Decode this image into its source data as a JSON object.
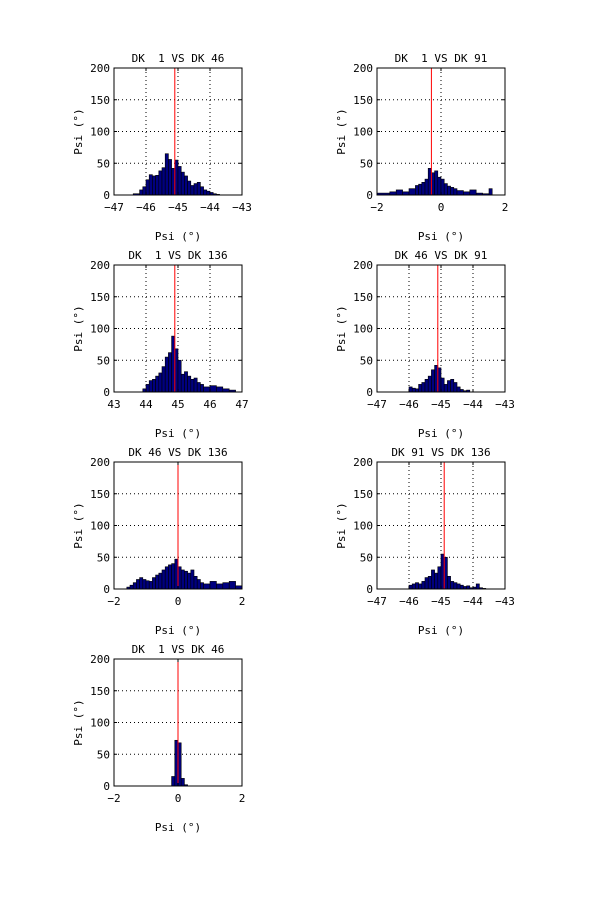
{
  "figure": {
    "background": "#ffffff",
    "bar_color": "#00007f",
    "bar_edge_color": "#000000",
    "marker_color": "#ff0000",
    "grid_color": "#000000"
  },
  "chart_data": [
    {
      "type": "bar",
      "title": "DK  1 VS DK 46",
      "xlabel": "Psi (°)",
      "ylabel": "Psi (°)",
      "xlim": [
        -47,
        -43
      ],
      "ylim": [
        0,
        200
      ],
      "xticks": [
        -47,
        -46,
        -45,
        -44,
        -43
      ],
      "yticks": [
        0,
        50,
        100,
        150,
        200
      ],
      "grid": true,
      "marker_x": -45.1,
      "bins": [
        {
          "x0": -46.4,
          "x1": -46.2,
          "count": 2
        },
        {
          "x0": -46.2,
          "x1": -46.1,
          "count": 8
        },
        {
          "x0": -46.1,
          "x1": -46.0,
          "count": 13
        },
        {
          "x0": -46.0,
          "x1": -45.9,
          "count": 24
        },
        {
          "x0": -45.9,
          "x1": -45.8,
          "count": 32
        },
        {
          "x0": -45.8,
          "x1": -45.7,
          "count": 30
        },
        {
          "x0": -45.7,
          "x1": -45.6,
          "count": 31
        },
        {
          "x0": -45.6,
          "x1": -45.5,
          "count": 38
        },
        {
          "x0": -45.5,
          "x1": -45.4,
          "count": 43
        },
        {
          "x0": -45.4,
          "x1": -45.3,
          "count": 65
        },
        {
          "x0": -45.3,
          "x1": -45.2,
          "count": 56
        },
        {
          "x0": -45.2,
          "x1": -45.1,
          "count": 42
        },
        {
          "x0": -45.1,
          "x1": -45.0,
          "count": 55
        },
        {
          "x0": -45.0,
          "x1": -44.9,
          "count": 45
        },
        {
          "x0": -44.9,
          "x1": -44.8,
          "count": 36
        },
        {
          "x0": -44.8,
          "x1": -44.7,
          "count": 30
        },
        {
          "x0": -44.7,
          "x1": -44.6,
          "count": 22
        },
        {
          "x0": -44.6,
          "x1": -44.5,
          "count": 15
        },
        {
          "x0": -44.5,
          "x1": -44.4,
          "count": 18
        },
        {
          "x0": -44.4,
          "x1": -44.3,
          "count": 20
        },
        {
          "x0": -44.3,
          "x1": -44.2,
          "count": 13
        },
        {
          "x0": -44.2,
          "x1": -44.1,
          "count": 8
        },
        {
          "x0": -44.1,
          "x1": -44.0,
          "count": 6
        },
        {
          "x0": -44.0,
          "x1": -43.9,
          "count": 4
        },
        {
          "x0": -43.9,
          "x1": -43.8,
          "count": 2
        },
        {
          "x0": -43.8,
          "x1": -43.7,
          "count": 1
        }
      ]
    },
    {
      "type": "bar",
      "title": "DK  1 VS DK 91",
      "xlabel": "Psi (°)",
      "ylabel": "Psi (°)",
      "xlim": [
        -2,
        2
      ],
      "ylim": [
        0,
        200
      ],
      "xticks": [
        -2,
        0,
        2
      ],
      "yticks": [
        0,
        50,
        100,
        150,
        200
      ],
      "grid": true,
      "marker_x": -0.3,
      "bins": [
        {
          "x0": -2.0,
          "x1": -1.6,
          "count": 3
        },
        {
          "x0": -1.6,
          "x1": -1.4,
          "count": 5
        },
        {
          "x0": -1.4,
          "x1": -1.2,
          "count": 8
        },
        {
          "x0": -1.2,
          "x1": -1.0,
          "count": 5
        },
        {
          "x0": -1.0,
          "x1": -0.8,
          "count": 10
        },
        {
          "x0": -0.8,
          "x1": -0.7,
          "count": 15
        },
        {
          "x0": -0.7,
          "x1": -0.6,
          "count": 17
        },
        {
          "x0": -0.6,
          "x1": -0.5,
          "count": 20
        },
        {
          "x0": -0.5,
          "x1": -0.4,
          "count": 25
        },
        {
          "x0": -0.4,
          "x1": -0.3,
          "count": 42
        },
        {
          "x0": -0.3,
          "x1": -0.2,
          "count": 35
        },
        {
          "x0": -0.2,
          "x1": -0.1,
          "count": 38
        },
        {
          "x0": -0.1,
          "x1": 0.0,
          "count": 28
        },
        {
          "x0": 0.0,
          "x1": 0.1,
          "count": 25
        },
        {
          "x0": 0.1,
          "x1": 0.2,
          "count": 18
        },
        {
          "x0": 0.2,
          "x1": 0.3,
          "count": 14
        },
        {
          "x0": 0.3,
          "x1": 0.4,
          "count": 12
        },
        {
          "x0": 0.4,
          "x1": 0.5,
          "count": 10
        },
        {
          "x0": 0.5,
          "x1": 0.7,
          "count": 7
        },
        {
          "x0": 0.7,
          "x1": 0.9,
          "count": 5
        },
        {
          "x0": 0.9,
          "x1": 1.1,
          "count": 8
        },
        {
          "x0": 1.1,
          "x1": 1.3,
          "count": 3
        },
        {
          "x0": 1.3,
          "x1": 1.5,
          "count": 2
        },
        {
          "x0": 1.5,
          "x1": 1.6,
          "count": 10
        }
      ]
    },
    {
      "type": "bar",
      "title": "DK  1 VS DK 136",
      "xlabel": "Psi (°)",
      "ylabel": "Psi (°)",
      "xlim": [
        43,
        47
      ],
      "ylim": [
        0,
        200
      ],
      "xticks": [
        43,
        44,
        45,
        46,
        47
      ],
      "yticks": [
        0,
        50,
        100,
        150,
        200
      ],
      "grid": true,
      "marker_x": 44.9,
      "bins": [
        {
          "x0": 43.9,
          "x1": 44.0,
          "count": 5
        },
        {
          "x0": 44.0,
          "x1": 44.1,
          "count": 12
        },
        {
          "x0": 44.1,
          "x1": 44.2,
          "count": 18
        },
        {
          "x0": 44.2,
          "x1": 44.3,
          "count": 20
        },
        {
          "x0": 44.3,
          "x1": 44.4,
          "count": 25
        },
        {
          "x0": 44.4,
          "x1": 44.5,
          "count": 30
        },
        {
          "x0": 44.5,
          "x1": 44.6,
          "count": 40
        },
        {
          "x0": 44.6,
          "x1": 44.7,
          "count": 55
        },
        {
          "x0": 44.7,
          "x1": 44.8,
          "count": 62
        },
        {
          "x0": 44.8,
          "x1": 44.9,
          "count": 88
        },
        {
          "x0": 44.9,
          "x1": 45.0,
          "count": 68
        },
        {
          "x0": 45.0,
          "x1": 45.1,
          "count": 50
        },
        {
          "x0": 45.1,
          "x1": 45.2,
          "count": 28
        },
        {
          "x0": 45.2,
          "x1": 45.3,
          "count": 32
        },
        {
          "x0": 45.3,
          "x1": 45.4,
          "count": 25
        },
        {
          "x0": 45.4,
          "x1": 45.5,
          "count": 20
        },
        {
          "x0": 45.5,
          "x1": 45.6,
          "count": 22
        },
        {
          "x0": 45.6,
          "x1": 45.7,
          "count": 15
        },
        {
          "x0": 45.7,
          "x1": 45.8,
          "count": 12
        },
        {
          "x0": 45.8,
          "x1": 46.0,
          "count": 8
        },
        {
          "x0": 46.0,
          "x1": 46.2,
          "count": 10
        },
        {
          "x0": 46.2,
          "x1": 46.4,
          "count": 8
        },
        {
          "x0": 46.4,
          "x1": 46.6,
          "count": 5
        },
        {
          "x0": 46.6,
          "x1": 46.8,
          "count": 3
        }
      ]
    },
    {
      "type": "bar",
      "title": "DK 46 VS DK 91",
      "xlabel": "Psi (°)",
      "ylabel": "Psi (°)",
      "xlim": [
        -47,
        -43
      ],
      "ylim": [
        0,
        200
      ],
      "xticks": [
        -47,
        -46,
        -45,
        -44,
        -43
      ],
      "yticks": [
        0,
        50,
        100,
        150,
        200
      ],
      "grid": true,
      "marker_x": -45.1,
      "bins": [
        {
          "x0": -46.0,
          "x1": -45.9,
          "count": 8
        },
        {
          "x0": -45.9,
          "x1": -45.8,
          "count": 6
        },
        {
          "x0": -45.8,
          "x1": -45.7,
          "count": 5
        },
        {
          "x0": -45.7,
          "x1": -45.6,
          "count": 12
        },
        {
          "x0": -45.6,
          "x1": -45.5,
          "count": 15
        },
        {
          "x0": -45.5,
          "x1": -45.4,
          "count": 20
        },
        {
          "x0": -45.4,
          "x1": -45.3,
          "count": 25
        },
        {
          "x0": -45.3,
          "x1": -45.2,
          "count": 35
        },
        {
          "x0": -45.2,
          "x1": -45.1,
          "count": 42
        },
        {
          "x0": -45.1,
          "x1": -45.0,
          "count": 38
        },
        {
          "x0": -45.0,
          "x1": -44.9,
          "count": 22
        },
        {
          "x0": -44.9,
          "x1": -44.8,
          "count": 12
        },
        {
          "x0": -44.8,
          "x1": -44.7,
          "count": 18
        },
        {
          "x0": -44.7,
          "x1": -44.6,
          "count": 20
        },
        {
          "x0": -44.6,
          "x1": -44.5,
          "count": 15
        },
        {
          "x0": -44.5,
          "x1": -44.4,
          "count": 8
        },
        {
          "x0": -44.4,
          "x1": -44.3,
          "count": 4
        },
        {
          "x0": -44.3,
          "x1": -44.2,
          "count": 2
        },
        {
          "x0": -44.2,
          "x1": -44.1,
          "count": 3
        }
      ]
    },
    {
      "type": "bar",
      "title": "DK 46 VS DK 136",
      "xlabel": "Psi (°)",
      "ylabel": "Psi (°)",
      "xlim": [
        -2,
        2
      ],
      "ylim": [
        0,
        200
      ],
      "xticks": [
        -2,
        0,
        2
      ],
      "yticks": [
        0,
        50,
        100,
        150,
        200
      ],
      "grid": true,
      "marker_x": 0.0,
      "bins": [
        {
          "x0": -1.6,
          "x1": -1.5,
          "count": 3
        },
        {
          "x0": -1.5,
          "x1": -1.4,
          "count": 6
        },
        {
          "x0": -1.4,
          "x1": -1.3,
          "count": 10
        },
        {
          "x0": -1.3,
          "x1": -1.2,
          "count": 15
        },
        {
          "x0": -1.2,
          "x1": -1.1,
          "count": 18
        },
        {
          "x0": -1.1,
          "x1": -1.0,
          "count": 15
        },
        {
          "x0": -1.0,
          "x1": -0.9,
          "count": 13
        },
        {
          "x0": -0.9,
          "x1": -0.8,
          "count": 12
        },
        {
          "x0": -0.8,
          "x1": -0.7,
          "count": 18
        },
        {
          "x0": -0.7,
          "x1": -0.6,
          "count": 22
        },
        {
          "x0": -0.6,
          "x1": -0.5,
          "count": 25
        },
        {
          "x0": -0.5,
          "x1": -0.4,
          "count": 30
        },
        {
          "x0": -0.4,
          "x1": -0.3,
          "count": 35
        },
        {
          "x0": -0.3,
          "x1": -0.2,
          "count": 38
        },
        {
          "x0": -0.2,
          "x1": -0.1,
          "count": 40
        },
        {
          "x0": -0.1,
          "x1": 0.0,
          "count": 47
        },
        {
          "x0": 0.0,
          "x1": 0.1,
          "count": 35
        },
        {
          "x0": 0.1,
          "x1": 0.2,
          "count": 30
        },
        {
          "x0": 0.2,
          "x1": 0.3,
          "count": 28
        },
        {
          "x0": 0.3,
          "x1": 0.4,
          "count": 25
        },
        {
          "x0": 0.4,
          "x1": 0.5,
          "count": 30
        },
        {
          "x0": 0.5,
          "x1": 0.6,
          "count": 20
        },
        {
          "x0": 0.6,
          "x1": 0.7,
          "count": 15
        },
        {
          "x0": 0.7,
          "x1": 0.8,
          "count": 10
        },
        {
          "x0": 0.8,
          "x1": 1.0,
          "count": 8
        },
        {
          "x0": 1.0,
          "x1": 1.2,
          "count": 12
        },
        {
          "x0": 1.2,
          "x1": 1.4,
          "count": 8
        },
        {
          "x0": 1.4,
          "x1": 1.6,
          "count": 10
        },
        {
          "x0": 1.6,
          "x1": 1.8,
          "count": 12
        },
        {
          "x0": 1.8,
          "x1": 2.0,
          "count": 5
        }
      ]
    },
    {
      "type": "bar",
      "title": "DK 91 VS DK 136",
      "xlabel": "Psi (°)",
      "ylabel": "Psi (°)",
      "xlim": [
        -47,
        -43
      ],
      "ylim": [
        0,
        200
      ],
      "xticks": [
        -47,
        -46,
        -45,
        -44,
        -43
      ],
      "yticks": [
        0,
        50,
        100,
        150,
        200
      ],
      "grid": true,
      "marker_x": -44.9,
      "bins": [
        {
          "x0": -46.0,
          "x1": -45.9,
          "count": 6
        },
        {
          "x0": -45.9,
          "x1": -45.8,
          "count": 8
        },
        {
          "x0": -45.8,
          "x1": -45.7,
          "count": 10
        },
        {
          "x0": -45.7,
          "x1": -45.6,
          "count": 8
        },
        {
          "x0": -45.6,
          "x1": -45.5,
          "count": 12
        },
        {
          "x0": -45.5,
          "x1": -45.4,
          "count": 18
        },
        {
          "x0": -45.4,
          "x1": -45.3,
          "count": 20
        },
        {
          "x0": -45.3,
          "x1": -45.2,
          "count": 30
        },
        {
          "x0": -45.2,
          "x1": -45.1,
          "count": 25
        },
        {
          "x0": -45.1,
          "x1": -45.0,
          "count": 35
        },
        {
          "x0": -45.0,
          "x1": -44.9,
          "count": 55
        },
        {
          "x0": -44.9,
          "x1": -44.8,
          "count": 50
        },
        {
          "x0": -44.8,
          "x1": -44.7,
          "count": 20
        },
        {
          "x0": -44.7,
          "x1": -44.6,
          "count": 12
        },
        {
          "x0": -44.6,
          "x1": -44.5,
          "count": 10
        },
        {
          "x0": -44.5,
          "x1": -44.4,
          "count": 8
        },
        {
          "x0": -44.4,
          "x1": -44.3,
          "count": 6
        },
        {
          "x0": -44.3,
          "x1": -44.2,
          "count": 4
        },
        {
          "x0": -44.2,
          "x1": -44.1,
          "count": 5
        },
        {
          "x0": -44.1,
          "x1": -44.0,
          "count": 2
        },
        {
          "x0": -44.0,
          "x1": -43.9,
          "count": 3
        },
        {
          "x0": -43.9,
          "x1": -43.8,
          "count": 8
        },
        {
          "x0": -43.8,
          "x1": -43.7,
          "count": 2
        },
        {
          "x0": -43.7,
          "x1": -43.6,
          "count": 1
        }
      ]
    },
    {
      "type": "bar",
      "title": "DK  1 VS DK 46",
      "xlabel": "Psi (°)",
      "ylabel": "Psi (°)",
      "xlim": [
        -2,
        2
      ],
      "ylim": [
        0,
        200
      ],
      "xticks": [
        -2,
        0,
        2
      ],
      "yticks": [
        0,
        50,
        100,
        150,
        200
      ],
      "grid": true,
      "marker_x": 0.0,
      "bins": [
        {
          "x0": -0.2,
          "x1": -0.1,
          "count": 15
        },
        {
          "x0": -0.1,
          "x1": 0.0,
          "count": 72
        },
        {
          "x0": 0.0,
          "x1": 0.1,
          "count": 68
        },
        {
          "x0": 0.1,
          "x1": 0.2,
          "count": 12
        },
        {
          "x0": 0.2,
          "x1": 0.3,
          "count": 2
        }
      ]
    }
  ]
}
